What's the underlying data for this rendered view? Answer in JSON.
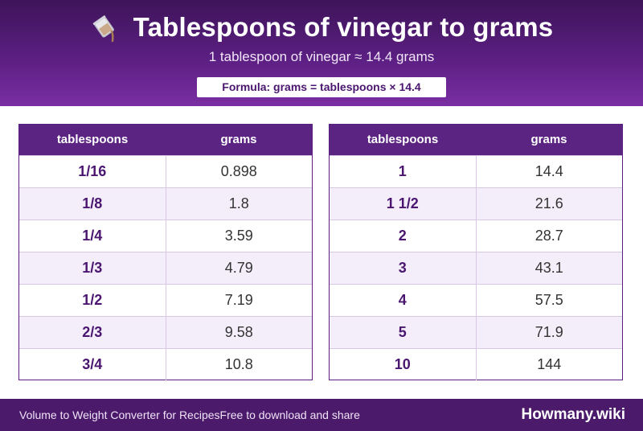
{
  "header": {
    "title_icon": "pouring-vinegar-icon",
    "title": "Tablespoons of vinegar to grams",
    "subtitle": "1 tablespoon of vinegar ≈ 14.4 grams",
    "formula": "Formula: grams = tablespoons × 14.4"
  },
  "left_table": {
    "columns": [
      "tablespoons",
      "grams"
    ],
    "rows": [
      [
        "1/16",
        "0.898"
      ],
      [
        "1/8",
        "1.8"
      ],
      [
        "1/4",
        "3.59"
      ],
      [
        "1/3",
        "4.79"
      ],
      [
        "1/2",
        "7.19"
      ],
      [
        "2/3",
        "9.58"
      ],
      [
        "3/4",
        "10.8"
      ]
    ]
  },
  "right_table": {
    "columns": [
      "tablespoons",
      "grams"
    ],
    "rows": [
      [
        "1",
        "14.4"
      ],
      [
        "1 1/2",
        "21.6"
      ],
      [
        "2",
        "28.7"
      ],
      [
        "3",
        "43.1"
      ],
      [
        "4",
        "57.5"
      ],
      [
        "5",
        "71.9"
      ],
      [
        "10",
        "144"
      ]
    ]
  },
  "footer": {
    "left_text": "Volume to Weight Converter for Recipes",
    "middle_text": "Free to download and share",
    "brand": "Howmany.wiki"
  },
  "colors": {
    "header_dark": "#3e1459",
    "header_light": "#7a2ea3",
    "accent": "#5b2483",
    "footer": "#4b1a6b",
    "row_alt": "#f4eefa"
  }
}
